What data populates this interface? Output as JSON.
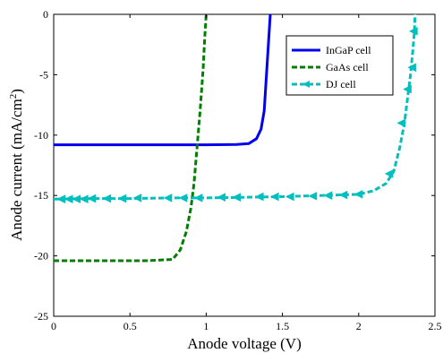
{
  "chart_data": {
    "type": "line",
    "xlabel": "Anode voltage (V)",
    "ylabel": {
      "main": "Anode current (mA/cm",
      "sup": "2",
      "close": ")"
    },
    "xlim": [
      0,
      2.5
    ],
    "ylim": [
      -25,
      0
    ],
    "xticks": [
      {
        "value": 0,
        "label": "0"
      },
      {
        "value": 0.5,
        "label": "0.5"
      },
      {
        "value": 1,
        "label": "1"
      },
      {
        "value": 1.5,
        "label": "1.5"
      },
      {
        "value": 2,
        "label": "2"
      },
      {
        "value": 2.5,
        "label": "2.5"
      }
    ],
    "yticks": [
      {
        "value": 0,
        "label": "0"
      },
      {
        "value": -5,
        "label": "-5"
      },
      {
        "value": -10,
        "label": "-10"
      },
      {
        "value": -15,
        "label": "-15"
      },
      {
        "value": -20,
        "label": "-20"
      },
      {
        "value": -25,
        "label": "-25"
      }
    ],
    "grid": false,
    "legend_position": "top-right",
    "series": [
      {
        "name": "InGaP cell",
        "color": "#0000ee",
        "style": "solid",
        "marker": "none",
        "x": [
          0,
          0.5,
          1.0,
          1.2,
          1.28,
          1.33,
          1.36,
          1.38,
          1.39,
          1.4,
          1.41,
          1.42
        ],
        "y": [
          -10.8,
          -10.8,
          -10.8,
          -10.78,
          -10.7,
          -10.3,
          -9.5,
          -8.0,
          -6.0,
          -4.0,
          -2.0,
          0
        ]
      },
      {
        "name": "GaAs cell",
        "color": "#007f00",
        "style": "dashed",
        "marker": "none",
        "x": [
          0,
          0.3,
          0.6,
          0.78,
          0.83,
          0.87,
          0.9,
          0.92,
          0.94,
          0.96,
          0.98,
          0.99,
          1.0
        ],
        "y": [
          -20.4,
          -20.4,
          -20.4,
          -20.3,
          -19.5,
          -18.0,
          -16.0,
          -14.0,
          -11.0,
          -8.0,
          -4.5,
          -2.0,
          0
        ]
      },
      {
        "name": "DJ cell",
        "color": "#00bfbf",
        "style": "dashed",
        "marker": "triangle-left",
        "x": [
          0,
          0.25,
          0.5,
          0.75,
          1.0,
          1.25,
          1.5,
          1.75,
          2.0,
          2.1,
          2.18,
          2.23,
          2.27,
          2.3,
          2.32,
          2.34,
          2.355,
          2.365,
          2.37
        ],
        "y": [
          -15.3,
          -15.25,
          -15.25,
          -15.2,
          -15.2,
          -15.15,
          -15.1,
          -15.0,
          -14.9,
          -14.6,
          -14.0,
          -13.0,
          -11.0,
          -9.0,
          -7.0,
          -5.0,
          -3.0,
          -1.5,
          0
        ],
        "marker_x": [
          0.05,
          0.1,
          0.15,
          0.2,
          0.25,
          0.35,
          0.45,
          0.55,
          0.75,
          0.85,
          0.95,
          1.1,
          1.2,
          1.35,
          1.45,
          1.55,
          1.7,
          1.8,
          1.9,
          2.0,
          2.2,
          2.28,
          2.32,
          2.35,
          2.36
        ],
        "marker_y": [
          -15.3,
          -15.3,
          -15.3,
          -15.3,
          -15.25,
          -15.25,
          -15.25,
          -15.2,
          -15.2,
          -15.2,
          -15.2,
          -15.15,
          -15.15,
          -15.1,
          -15.1,
          -15.1,
          -15.05,
          -15.0,
          -14.95,
          -14.9,
          -13.2,
          -9.0,
          -6.2,
          -4.4,
          -1.4
        ]
      }
    ]
  }
}
